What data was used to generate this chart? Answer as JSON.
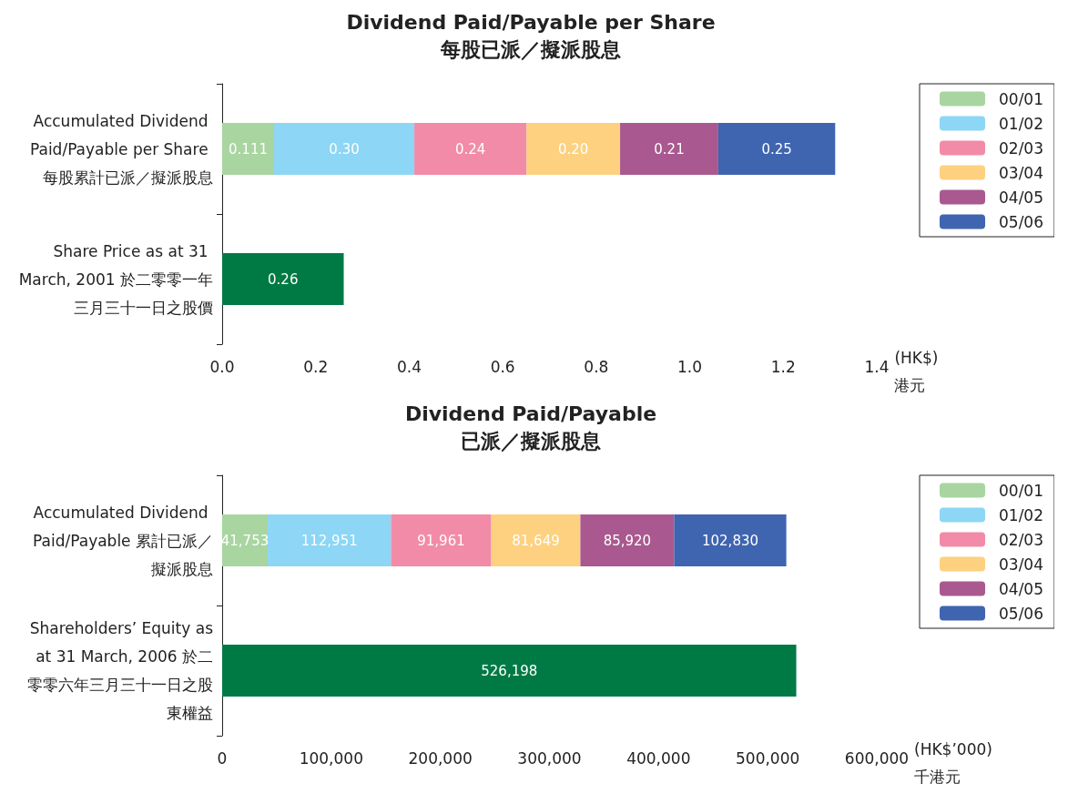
{
  "chart_data": [
    {
      "type": "bar",
      "orientation": "horizontal",
      "stacked": true,
      "title": "Dividend Paid/Payable per Share",
      "subtitle": "每股已派／擬派股息",
      "xlabel": "(HK$)\n港元",
      "categories": [
        "Accumulated Dividend Paid/Payable per Share 每股累計已派／擬派股息",
        "Share Price as at 31 March, 2001 於二零零一年三月三十一日之股價"
      ],
      "series": [
        {
          "name": "00/01",
          "color": "#a8d5a0",
          "values": [
            0.111,
            null
          ],
          "value_labels": [
            "0.111",
            null
          ]
        },
        {
          "name": "01/02",
          "color": "#8dd6f5",
          "values": [
            0.3,
            null
          ],
          "value_labels": [
            "0.30",
            null
          ]
        },
        {
          "name": "02/03",
          "color": "#f28ba8",
          "values": [
            0.24,
            null
          ],
          "value_labels": [
            "0.24",
            null
          ]
        },
        {
          "name": "03/04",
          "color": "#fdd17f",
          "values": [
            0.2,
            null
          ],
          "value_labels": [
            "0.20",
            null
          ]
        },
        {
          "name": "04/05",
          "color": "#a9598f",
          "values": [
            0.21,
            null
          ],
          "value_labels": [
            "0.21",
            null
          ]
        },
        {
          "name": "05/06",
          "color": "#3f64b0",
          "values": [
            0.25,
            null
          ],
          "value_labels": [
            "0.25",
            null
          ]
        },
        {
          "color": "#007a45",
          "values": [
            null,
            0.26
          ],
          "value_labels": [
            null,
            "0.26"
          ]
        }
      ],
      "xlim": [
        0,
        1.4
      ],
      "xticks": [
        {
          "value": 0,
          "label": "0.0"
        },
        0.2,
        0.4,
        0.6,
        0.8,
        {
          "value": 1,
          "label": "1.0"
        },
        1.2,
        1.4
      ],
      "grid": false,
      "legend": "top right"
    },
    {
      "type": "bar",
      "orientation": "horizontal",
      "stacked": true,
      "title": "Dividend Paid/Payable",
      "subtitle": "已派／擬派股息",
      "xlabel": "(HK$’000)\n千港元",
      "categories": [
        "Accumulated Dividend Paid/Payable 累計已派／擬派股息",
        "Shareholders’ Equity as at 31 March, 2006 於二零零六年三月三十一日之股東權益"
      ],
      "series": [
        {
          "name": "00/01",
          "color": "#a8d5a0",
          "values": [
            41753,
            null
          ],
          "value_labels": [
            "41,753",
            null
          ]
        },
        {
          "name": "01/02",
          "color": "#8dd6f5",
          "values": [
            112951,
            null
          ],
          "value_labels": [
            "112,951",
            null
          ]
        },
        {
          "name": "02/03",
          "color": "#f28ba8",
          "values": [
            91961,
            null
          ],
          "value_labels": [
            "91,961",
            null
          ]
        },
        {
          "name": "03/04",
          "color": "#fdd17f",
          "values": [
            81649,
            null
          ],
          "value_labels": [
            "81,649",
            null
          ]
        },
        {
          "name": "04/05",
          "color": "#a9598f",
          "values": [
            85920,
            null
          ],
          "value_labels": [
            "85,920",
            null
          ]
        },
        {
          "name": "05/06",
          "color": "#3f64b0",
          "values": [
            102830,
            null
          ],
          "value_labels": [
            "102,830",
            null
          ]
        },
        {
          "color": "#007a45",
          "values": [
            null,
            526198
          ],
          "value_labels": [
            null,
            "526,198"
          ]
        }
      ],
      "xlim": [
        0,
        600000
      ],
      "xticks": [
        0,
        {
          "value": 100000,
          "label": "100,000"
        },
        {
          "value": 200000,
          "label": "200,000"
        },
        {
          "value": 300000,
          "label": "300,000"
        },
        {
          "value": 400000,
          "label": "400,000"
        },
        {
          "value": 500000,
          "label": "500,000"
        },
        {
          "value": 600000,
          "label": "600,000"
        }
      ],
      "grid": false,
      "legend": "top right"
    }
  ]
}
